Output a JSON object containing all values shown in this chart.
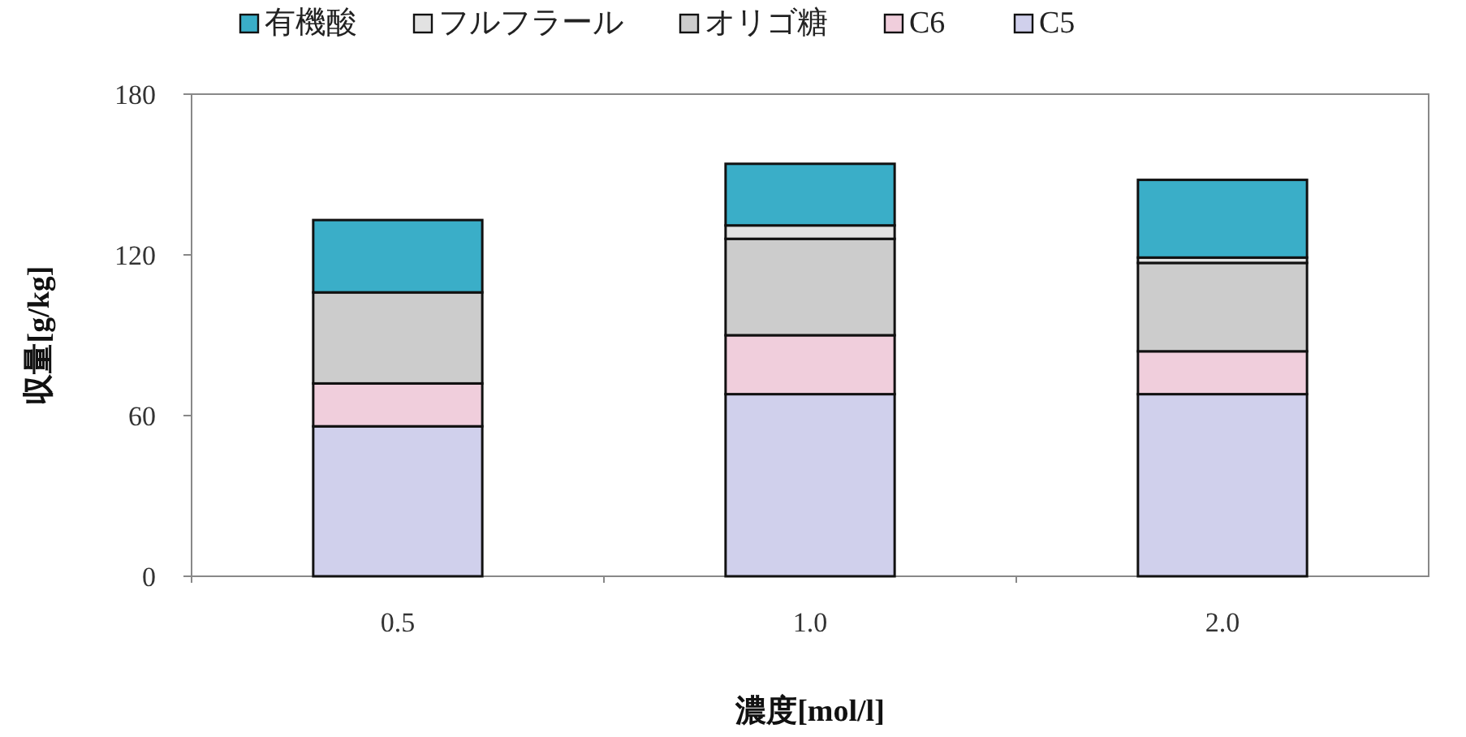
{
  "chart_data": {
    "type": "bar",
    "stacked": true,
    "xlabel": "濃度[mol/l]",
    "ylabel": "収量[g/kg]",
    "categories": [
      "0.5",
      "1.0",
      "2.0"
    ],
    "ylim": [
      0,
      180
    ],
    "yticks": [
      0,
      60,
      120,
      180
    ],
    "grid": false,
    "legend": "top",
    "series": [
      {
        "name": "C5",
        "color": "#d0d0ec",
        "values": [
          56,
          68,
          68
        ]
      },
      {
        "name": "C6",
        "color": "#f0cedc",
        "values": [
          16,
          22,
          16
        ]
      },
      {
        "name": "オリゴ糖",
        "color": "#cccccc",
        "values": [
          34,
          36,
          33
        ]
      },
      {
        "name": "フルフラール",
        "color": "#e2e2e2",
        "values": [
          0,
          5,
          2
        ]
      },
      {
        "name": "有機酸",
        "color": "#3aaec8",
        "values": [
          27,
          23,
          29
        ]
      }
    ]
  }
}
